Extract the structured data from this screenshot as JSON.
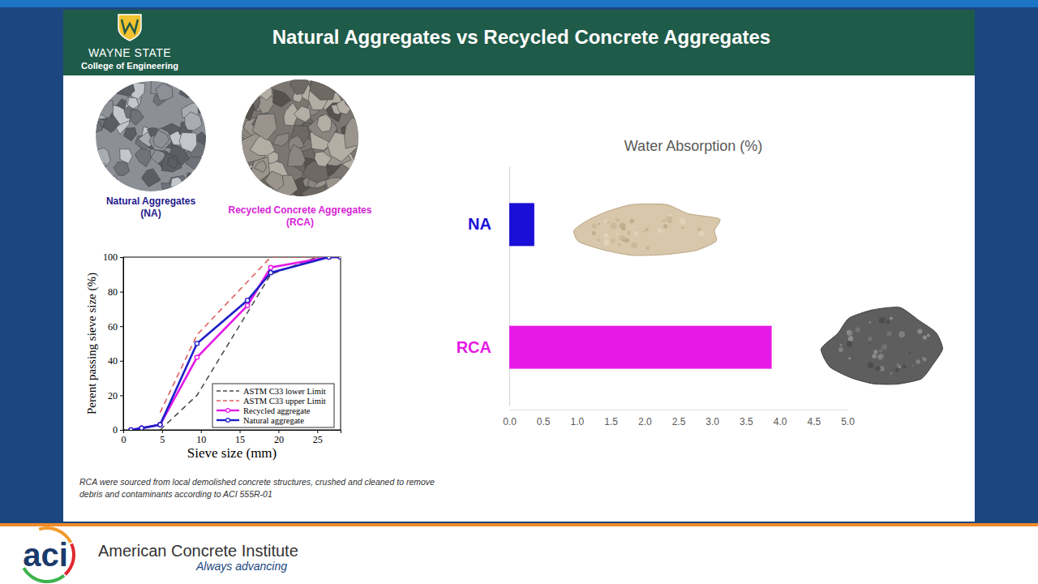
{
  "slide": {
    "title": "Natural Aggregates vs Recycled Concrete Aggregates",
    "logo": {
      "name": "WAYNE STATE",
      "unit": "College of Engineering"
    },
    "images": [
      {
        "label": [
          "Natural Aggregates",
          "(NA)"
        ]
      },
      {
        "label": [
          "Recycled Concrete Aggregates",
          "(RCA)"
        ]
      }
    ],
    "caption": [
      "RCA were sourced from local demolished concrete structures, crushed and cleaned to remove",
      "debris and contaminants according to ACI 555R-01"
    ],
    "footer": {
      "logo": "aci",
      "name": "American Concrete Institute",
      "tagline": "Always advancing"
    }
  },
  "chart_data": [
    {
      "type": "line",
      "xlabel": "Sieve size (mm)",
      "ylabel": "Perent passing sieve size (%)",
      "xlim": [
        0,
        28
      ],
      "xticks": [
        0,
        5,
        10,
        15,
        20,
        25
      ],
      "ylim": [
        0,
        100
      ],
      "yticks": [
        0,
        20,
        40,
        60,
        80,
        100
      ],
      "legend": "lower right",
      "series": [
        {
          "name": "ASTM C33 lower Limit",
          "color": "#4d4d4d",
          "line_style": "dashed",
          "marker": "none",
          "x": [
            4.75,
            9.5,
            19,
            25
          ],
          "values": [
            0,
            20,
            90,
            100
          ]
        },
        {
          "name": "ASTM C33 upper Limit",
          "color": "#e06060",
          "line_style": "dashed",
          "marker": "none",
          "x": [
            4.75,
            9.5,
            19,
            25
          ],
          "values": [
            10,
            55,
            100,
            100
          ]
        },
        {
          "name": "Recycled aggregate",
          "color": "#e619e6",
          "line_style": "solid",
          "marker": "circle",
          "x": [
            1,
            2.36,
            4.75,
            9.5,
            16,
            19,
            26.5,
            28
          ],
          "values": [
            0,
            1,
            3,
            42,
            72,
            94,
            100,
            100
          ]
        },
        {
          "name": "Natural aggregate",
          "color": "#1f1fc8",
          "line_style": "solid",
          "marker": "circle",
          "x": [
            1,
            2.36,
            4.75,
            9.5,
            16,
            19,
            26.5,
            28
          ],
          "values": [
            0,
            1,
            3,
            50,
            75,
            91,
            100,
            100
          ]
        }
      ]
    },
    {
      "type": "bar",
      "title": "Water Absorption (%)",
      "orientation": "horizontal",
      "categories": [
        "NA",
        "RCA"
      ],
      "values": [
        0.37,
        3.88
      ],
      "colors": [
        "#1a0fd6",
        "#e619e6"
      ],
      "xlim": [
        0,
        5
      ],
      "xticks": [
        {
          "value": 0,
          "label": "0.0"
        },
        {
          "value": 0.5,
          "label": "0.5"
        },
        {
          "value": 1,
          "label": "1.0"
        },
        {
          "value": 1.5,
          "label": "1.5"
        },
        {
          "value": 2,
          "label": "2.0"
        },
        {
          "value": 2.5,
          "label": "2.5"
        },
        {
          "value": 3,
          "label": "3.0"
        },
        {
          "value": 3.5,
          "label": "3.5"
        },
        {
          "value": 4,
          "label": "4.0"
        },
        {
          "value": 4.5,
          "label": "4.5"
        },
        {
          "value": 5,
          "label": "5.0"
        }
      ]
    }
  ]
}
